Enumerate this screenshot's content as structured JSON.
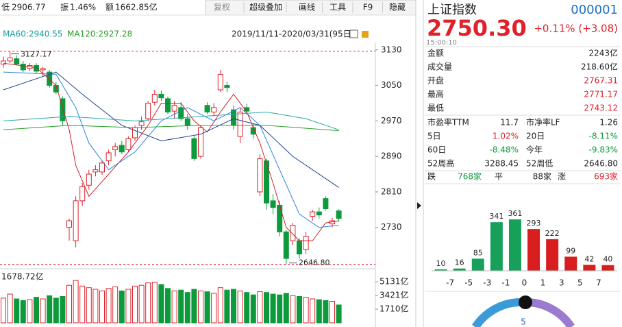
{
  "toolbar": {
    "low_label": "低",
    "low": "2906.77",
    "amp_label": "振",
    "amp": "1.46%",
    "amt_label": "额",
    "amt": "1662.85亿",
    "buttons": [
      "复权",
      "超级叠加",
      "画线",
      "工具",
      "F9",
      "隐藏"
    ]
  },
  "legend": {
    "ma60": "MA60:2940.55",
    "ma120": "MA120:2927.28",
    "range": "2019/11/11-2020/03/31(95日)"
  },
  "chart_data": [
    {
      "type": "candlestick",
      "ylim": [
        2640,
        3142
      ],
      "yticks": [
        2730,
        2810,
        2890,
        2970,
        3050,
        3130
      ],
      "up_color": "#e0202a",
      "down_color": "#0c9a3c",
      "candles": [
        [
          3098,
          3115,
          3090,
          3105
        ],
        [
          3105,
          3127.17,
          3100,
          3112
        ],
        [
          3110,
          3118,
          3095,
          3098
        ],
        [
          3098,
          3105,
          3080,
          3085
        ],
        [
          3088,
          3100,
          3082,
          3095
        ],
        [
          3095,
          3100,
          3078,
          3082
        ],
        [
          3085,
          3092,
          3070,
          3088
        ],
        [
          3080,
          3085,
          3045,
          3050
        ],
        [
          3050,
          3058,
          3030,
          3035
        ],
        [
          3020,
          3025,
          2960,
          2970
        ],
        [
          2730,
          2750,
          2700,
          2745
        ],
        [
          2700,
          2800,
          2685,
          2790
        ],
        [
          2790,
          2830,
          2778,
          2822
        ],
        [
          2825,
          2860,
          2815,
          2850
        ],
        [
          2855,
          2870,
          2845,
          2860
        ],
        [
          2855,
          2880,
          2848,
          2875
        ],
        [
          2880,
          2905,
          2870,
          2898
        ],
        [
          2905,
          2920,
          2890,
          2912
        ],
        [
          2915,
          2925,
          2895,
          2900
        ],
        [
          2905,
          2935,
          2900,
          2930
        ],
        [
          2932,
          2960,
          2925,
          2955
        ],
        [
          2960,
          2980,
          2950,
          2968
        ],
        [
          2975,
          3015,
          2970,
          3010
        ],
        [
          3012,
          3040,
          3005,
          3030
        ],
        [
          3030,
          3038,
          3015,
          3022
        ],
        [
          3020,
          3025,
          2985,
          2990
        ],
        [
          2992,
          3015,
          2975,
          3005
        ],
        [
          3000,
          3012,
          2970,
          2975
        ],
        [
          2975,
          2985,
          2950,
          2960
        ],
        [
          2930,
          2935,
          2880,
          2885
        ],
        [
          2890,
          2960,
          2885,
          2955
        ],
        [
          3005,
          3012,
          2985,
          2990
        ],
        [
          2990,
          3010,
          2980,
          3000
        ],
        [
          3040,
          3085,
          3035,
          3075
        ],
        [
          3050,
          3058,
          3035,
          3045
        ],
        [
          2995,
          3005,
          2950,
          2960
        ],
        [
          2935,
          3000,
          2920,
          2990
        ],
        [
          3000,
          3008,
          2985,
          2992
        ],
        [
          2955,
          2965,
          2930,
          2940
        ],
        [
          2810,
          2895,
          2800,
          2885
        ],
        [
          2880,
          2885,
          2770,
          2785
        ],
        [
          2790,
          2805,
          2760,
          2775
        ],
        [
          2780,
          2790,
          2710,
          2720
        ],
        [
          2720,
          2725,
          2646.8,
          2660
        ],
        [
          2700,
          2740,
          2690,
          2735
        ],
        [
          2700,
          2705,
          2660,
          2670
        ],
        [
          2680,
          2720,
          2670,
          2710
        ],
        [
          2755,
          2770,
          2745,
          2765
        ],
        [
          2765,
          2775,
          2750,
          2758
        ],
        [
          2795,
          2800,
          2768,
          2772
        ],
        [
          2738,
          2752,
          2730,
          2745
        ],
        [
          2767.31,
          2771.17,
          2743.12,
          2750.3
        ]
      ],
      "ma_lines": [
        {
          "color": "#d0202a",
          "x": [
            0,
            5,
            8,
            10,
            11,
            13,
            16,
            19,
            22,
            24,
            27,
            29,
            31,
            33,
            35,
            37,
            39,
            41,
            43,
            45,
            47,
            49,
            51
          ],
          "values": [
            3100,
            3090,
            3050,
            2950,
            2870,
            2800,
            2850,
            2900,
            2960,
            3010,
            3010,
            2970,
            2945,
            2990,
            3030,
            2990,
            2920,
            2830,
            2730,
            2700,
            2700,
            2740,
            2745
          ]
        },
        {
          "color": "#2a7fe0",
          "x": [
            0,
            8,
            11,
            13,
            16,
            20,
            24,
            28,
            32,
            36,
            39,
            42,
            45,
            48,
            51
          ],
          "values": [
            3080,
            3075,
            3000,
            2920,
            2860,
            2900,
            2970,
            3000,
            2970,
            3000,
            2960,
            2860,
            2760,
            2730,
            2735
          ]
        },
        {
          "color": "#1f3f8f",
          "x": [
            0,
            8,
            12,
            18,
            24,
            30,
            35,
            39,
            44,
            48,
            51
          ],
          "values": [
            3040,
            3080,
            3030,
            2960,
            2925,
            2940,
            2975,
            2960,
            2890,
            2850,
            2820
          ]
        },
        {
          "color": "#28a8a8",
          "x": [
            0,
            10,
            20,
            30,
            40,
            46,
            51
          ],
          "values": [
            2970,
            2980,
            2970,
            2980,
            2990,
            2975,
            2950
          ]
        },
        {
          "color": "#2aa02a",
          "x": [
            0,
            10,
            20,
            30,
            40,
            51
          ],
          "values": [
            2950,
            2960,
            2955,
            2960,
            2960,
            2948
          ]
        }
      ],
      "annotations": [
        {
          "value": 3127.17,
          "label": "3127.17"
        },
        {
          "value": 2646.8,
          "label": "2646.80"
        }
      ]
    },
    {
      "type": "bar",
      "title": "1678.72亿",
      "ylim": [
        0,
        6000
      ],
      "yticks": [
        {
          "value": 5131,
          "label": "5131亿"
        },
        {
          "value": 3421,
          "label": "3421亿"
        },
        {
          "value": 1710,
          "label": "1710亿"
        }
      ],
      "values": [
        3100,
        3600,
        3000,
        2800,
        2900,
        3200,
        3000,
        3400,
        3100,
        3300,
        4700,
        5300,
        4600,
        4400,
        4200,
        4000,
        4300,
        4500,
        4000,
        4200,
        4600,
        4700,
        5000,
        5100,
        4800,
        4300,
        4000,
        4100,
        3800,
        4200,
        4000,
        3900,
        3700,
        4400,
        4100,
        4200,
        4000,
        3800,
        3500,
        3900,
        3800,
        3600,
        3500,
        3700,
        3400,
        3300,
        3200,
        3000,
        2900,
        2800,
        2700,
        2243
      ]
    },
    {
      "type": "bar",
      "values": [
        10,
        16,
        85,
        341,
        361,
        293,
        222,
        99,
        42,
        40
      ],
      "xticks": [
        -7,
        -5,
        -3,
        -1,
        0,
        1,
        3,
        5,
        7
      ],
      "colors": [
        "#17a05a",
        "#17a05a",
        "#17a05a",
        "#17a05a",
        "#17a05a",
        "#d81e1e",
        "#d81e1e",
        "#d81e1e",
        "#d81e1e",
        "#d81e1e"
      ]
    }
  ],
  "quote": {
    "name": "上证指数",
    "code": "000001",
    "price": "2750.30",
    "change": "+0.11% (+3.08)",
    "time": "15:00:10",
    "rows": [
      {
        "label": "金额",
        "value": "2243亿",
        "color": "#222"
      },
      {
        "label": "成交量",
        "value": "218.60亿",
        "color": "#222"
      },
      {
        "label": "开盘",
        "value": "2767.31",
        "color": "#e0202a"
      },
      {
        "label": "最高",
        "value": "2771.17",
        "color": "#e0202a"
      },
      {
        "label": "最低",
        "value": "2743.12",
        "color": "#e0202a"
      }
    ],
    "grid": [
      [
        "市盈率TTM",
        "11.7",
        "市净率LF",
        "1.26"
      ],
      [
        "5日",
        "1.02%",
        "20日",
        "-8.11%"
      ],
      [
        "60日",
        "-8.48%",
        "今年",
        "-9.83%"
      ],
      [
        "52周高",
        "3288.45",
        "52周低",
        "2646.80"
      ]
    ],
    "grid_colors": [
      [
        "#222",
        "#222"
      ],
      [
        "#e0202a",
        "#0c9a3c"
      ],
      [
        "#0c9a3c",
        "#0c9a3c"
      ],
      [
        "#222",
        "#222"
      ]
    ],
    "breadth": {
      "down_label": "跌",
      "down": "768家",
      "flat_label": "平",
      "flat": "88家",
      "up_label": "涨",
      "up": "693家"
    },
    "gauge": "5"
  }
}
